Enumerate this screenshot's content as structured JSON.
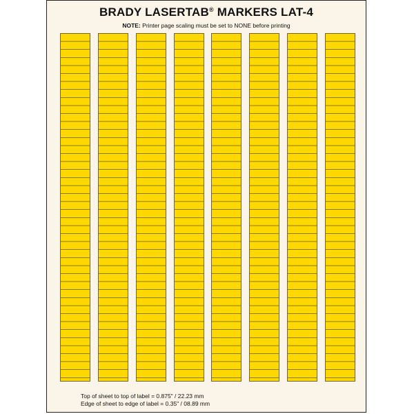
{
  "header": {
    "title_main": "BRADY LASERTAB",
    "title_reg": "®",
    "title_rest": " MARKERS LAT-4",
    "note_label": "NOTE:",
    "note_text": " Printer page scaling must be set to NONE before printing"
  },
  "sheet": {
    "label_color": "#ffd800",
    "background_color": "#faf5e8",
    "label_columns": 8
  },
  "footer": {
    "line1": "Top of sheet to top of label = 0.875\" / 22.23 mm",
    "line2": "Edge of sheet to edge of label = 0.35\" / 08.89 mm"
  }
}
